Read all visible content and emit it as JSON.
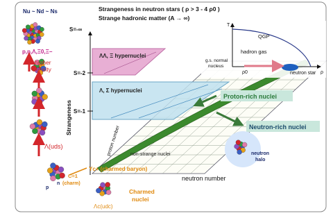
{
  "header": {
    "quark_ratio": "Nu ~ Nd ~ Ns",
    "line1": "Strangeness in neutron stars ( ρ > 3 - 4 ρ0 )",
    "line2": "Strange hadronic matter (A → ∞)"
  },
  "left": {
    "s_infinity": "S=-∞",
    "particles": "p,n,Λ,Ξ0,Ξ−",
    "higher": "higher",
    "density": "density",
    "lambda": "Λ(uds)",
    "p": "p",
    "n": "n",
    "charm": "C=1",
    "charm_paren": "(charm)"
  },
  "axes": {
    "strangeness": "Strangeness",
    "s_minus2": "S=-2",
    "s_minus1": "S=-1",
    "proton_number": "proton number",
    "neutron_number": "neutron number"
  },
  "regions": {
    "double": "ΛΛ, Ξ hypernuclei",
    "single": "Λ, Σ hypernuclei",
    "proton_rich": "Proton-rich nuclei",
    "neutron_rich": "Neutron-rich nuclei",
    "non_strange": "non-strange nuclei",
    "neutron": "neutron",
    "halo": "halo"
  },
  "phase": {
    "t": "T",
    "qgp": "QGP",
    "hadron_gas": "hadron gas",
    "gs": "g.s. normal",
    "nucleus": "nucleus",
    "rho0": "ρ0",
    "rho": "ρ",
    "neutron_star": "neutron star"
  },
  "charm": {
    "yc": "Yc+ (charmed baryon)",
    "lambda_c": "Λc(udc)",
    "charmed": "Charmed",
    "nuclei": "nuclei"
  }
}
